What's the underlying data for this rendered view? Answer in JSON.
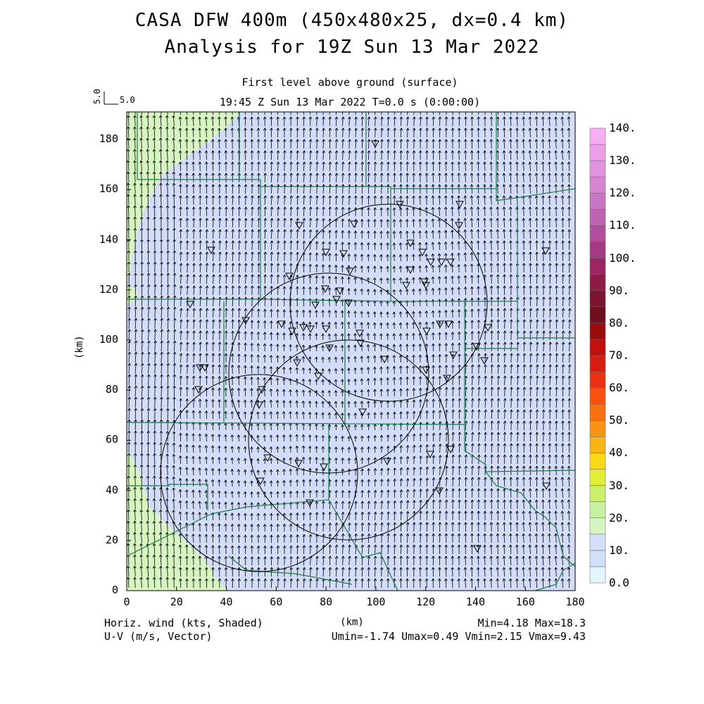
{
  "title": {
    "line1": "CASA DFW 400m (450x480x25, dx=0.4 km)",
    "line2": "Analysis for 19Z Sun 13 Mar 2022"
  },
  "subtitle": {
    "level": "First level above ground (surface)",
    "time": "19:45 Z Sun 13 Mar 2022    T=0.0 s (0:00:00)"
  },
  "reference_vector": {
    "rotated_label": "5.0",
    "label": "5.0"
  },
  "footer": {
    "left_line1": "Horiz. wind (kts, Shaded)",
    "left_line2": "U-V (m/s, Vector)",
    "right_line1": "Min=4.18 Max=18.3",
    "right_line2": "Umin=-1.74 Umax=0.49 Vmin=2.15 Vmax=9.43"
  },
  "axes": {
    "x_title": "(km)",
    "y_title": "(km)",
    "x_ticks": [
      "0",
      "20",
      "40",
      "60",
      "80",
      "100",
      "120",
      "140",
      "160",
      "180"
    ],
    "y_ticks": [
      "0",
      "20",
      "40",
      "60",
      "80",
      "100",
      "120",
      "140",
      "160",
      "180"
    ],
    "x_range": [
      0,
      180
    ],
    "y_range": [
      0,
      191
    ]
  },
  "colorbar": {
    "labels": [
      "0.0",
      "10.",
      "20.",
      "30.",
      "40.",
      "50.",
      "60.",
      "70.",
      "80.",
      "90.",
      "100.",
      "110.",
      "120.",
      "130.",
      "140."
    ],
    "colors": [
      "#e2f6fc",
      "#cfe0f8",
      "#d6dff9",
      "#d6f5c4",
      "#c6f2a2",
      "#ccf06a",
      "#e2ee36",
      "#f9d817",
      "#f9b517",
      "#fa9314",
      "#f9700f",
      "#f95210",
      "#ea3213",
      "#d81d11",
      "#c01010",
      "#9a0b0e",
      "#6e0f1d",
      "#7a1430",
      "#8c1b45",
      "#9b2760",
      "#a43a82",
      "#b24f9d",
      "#bd63b0",
      "#c876c4",
      "#d486d1",
      "#e193dd",
      "#ec9ee7",
      "#f7aff3"
    ]
  },
  "map": {
    "background": "#d3dcf8",
    "light_green_zone": "#d7f5c1",
    "county_line_color": "#1d7a4a",
    "radar_ring_color": "#000000",
    "station_marker": "triangle-down-icon"
  }
}
